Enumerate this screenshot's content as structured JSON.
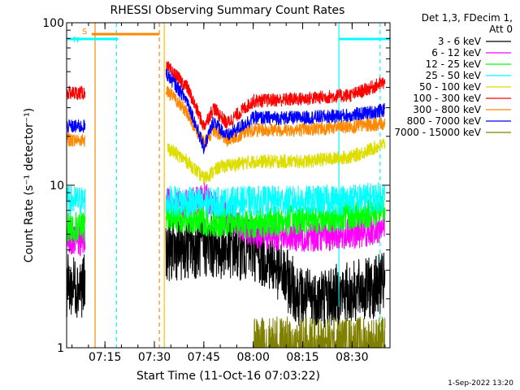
{
  "chart_data": {
    "type": "line",
    "title": "RHESSI Observing Summary Count Rates",
    "xlabel": "Start Time (11-Oct-16 07:03:22)",
    "ylabel": "Count Rate (s⁻¹ detector⁻¹)",
    "y_scale": "log",
    "ylim": [
      1,
      100
    ],
    "xlim": [
      "07:03:22",
      "08:41:30"
    ],
    "x_ticks": [
      "07:15",
      "07:30",
      "07:45",
      "08:00",
      "08:15",
      "08:30"
    ],
    "y_ticks": [
      "1",
      "10",
      "100"
    ],
    "grid": false,
    "legend_header": [
      "Det 1,3, FDecim 1,",
      "Att 0"
    ],
    "legend_placement": "right",
    "footer_date": "1-Sep-2022 13:20",
    "flags": [
      {
        "label": "S",
        "color": "#ff8800",
        "start": "07:11:00",
        "end": "07:31:30"
      },
      {
        "label": "N",
        "color": "#00ffff",
        "start": "07:03:22",
        "end": "07:19:00"
      },
      {
        "label": "",
        "color": "#00ffff",
        "start": "08:26:00",
        "end": "08:41:30"
      }
    ],
    "vlines": [
      {
        "time": "07:12:00",
        "color": "#ff8800",
        "style": "solid"
      },
      {
        "time": "07:18:30",
        "color": "#00ffff",
        "style": "dashed"
      },
      {
        "time": "07:31:30",
        "color": "#ff8800",
        "style": "dashed"
      },
      {
        "time": "07:33:00",
        "color": "#ffbb00",
        "style": "solid"
      },
      {
        "time": "08:26:00",
        "color": "#00ffff",
        "style": "solid"
      },
      {
        "time": "08:38:30",
        "color": "#00ffff",
        "style": "dashed"
      }
    ],
    "data_gap": [
      "07:09:00",
      "07:33:30"
    ],
    "series": [
      {
        "name": "3 - 6 keV",
        "color": "#000000",
        "times": [
          "07:03",
          "07:09",
          "07:34",
          "07:45",
          "08:00",
          "08:05",
          "08:15",
          "08:25",
          "08:35",
          "08:40"
        ],
        "values": [
          2.4,
          2.4,
          4.0,
          4.2,
          4.0,
          3.5,
          2.0,
          2.1,
          2.3,
          2.5
        ]
      },
      {
        "name": "6 - 12 keV",
        "color": "#ff00ff",
        "times": [
          "07:03",
          "07:09",
          "07:34",
          "07:40",
          "07:45",
          "07:50",
          "08:00",
          "08:15",
          "08:30",
          "08:40"
        ],
        "values": [
          4.5,
          4.5,
          8.0,
          7.5,
          8.5,
          7.0,
          5.0,
          4.8,
          5.0,
          5.5
        ]
      },
      {
        "name": "12 - 25 keV",
        "color": "#00ff00",
        "times": [
          "07:03",
          "07:09",
          "07:34",
          "07:45",
          "08:00",
          "08:15",
          "08:30",
          "08:40"
        ],
        "values": [
          5.5,
          5.5,
          6.5,
          6.0,
          5.8,
          6.2,
          6.5,
          7.0
        ]
      },
      {
        "name": "25 - 50 keV",
        "color": "#00ffff",
        "times": [
          "07:03",
          "07:09",
          "07:34",
          "07:45",
          "08:00",
          "08:15",
          "08:30",
          "08:40"
        ],
        "values": [
          8.0,
          8.0,
          8.0,
          7.8,
          8.0,
          8.0,
          8.2,
          8.5
        ]
      },
      {
        "name": "50 - 100 keV",
        "color": "#dddd00",
        "times": [
          "07:34",
          "07:40",
          "07:45",
          "07:50",
          "08:00",
          "08:15",
          "08:30",
          "08:40"
        ],
        "values": [
          17.0,
          14.0,
          11.0,
          13.0,
          14.0,
          14.0,
          15.0,
          18.0
        ]
      },
      {
        "name": "100 - 300 keV",
        "color": "#ff0000",
        "times": [
          "07:03",
          "07:09",
          "07:34",
          "07:40",
          "07:45",
          "07:48",
          "07:52",
          "08:00",
          "08:15",
          "08:30",
          "08:40"
        ],
        "values": [
          37.0,
          37.0,
          53.0,
          40.0,
          23.0,
          30.0,
          24.0,
          33.0,
          34.0,
          36.0,
          43.0
        ]
      },
      {
        "name": "300 - 800 keV",
        "color": "#ff8800",
        "times": [
          "07:03",
          "07:09",
          "07:34",
          "07:40",
          "07:45",
          "07:48",
          "07:52",
          "08:00",
          "08:15",
          "08:30",
          "08:40"
        ],
        "values": [
          19.0,
          19.0,
          38.0,
          28.0,
          18.0,
          22.0,
          19.0,
          22.0,
          22.0,
          23.0,
          24.0
        ]
      },
      {
        "name": "800 - 7000 keV",
        "color": "#0000ff",
        "times": [
          "07:03",
          "07:09",
          "07:34",
          "07:40",
          "07:45",
          "07:48",
          "07:52",
          "08:00",
          "08:15",
          "08:30",
          "08:40"
        ],
        "values": [
          23.0,
          23.0,
          48.0,
          33.0,
          17.0,
          25.0,
          20.0,
          26.0,
          26.0,
          27.0,
          29.0
        ]
      },
      {
        "name": "7000 - 15000 keV",
        "color": "#808000",
        "times": [
          "08:00",
          "08:40"
        ],
        "values": [
          1.0,
          1.0
        ]
      }
    ]
  }
}
